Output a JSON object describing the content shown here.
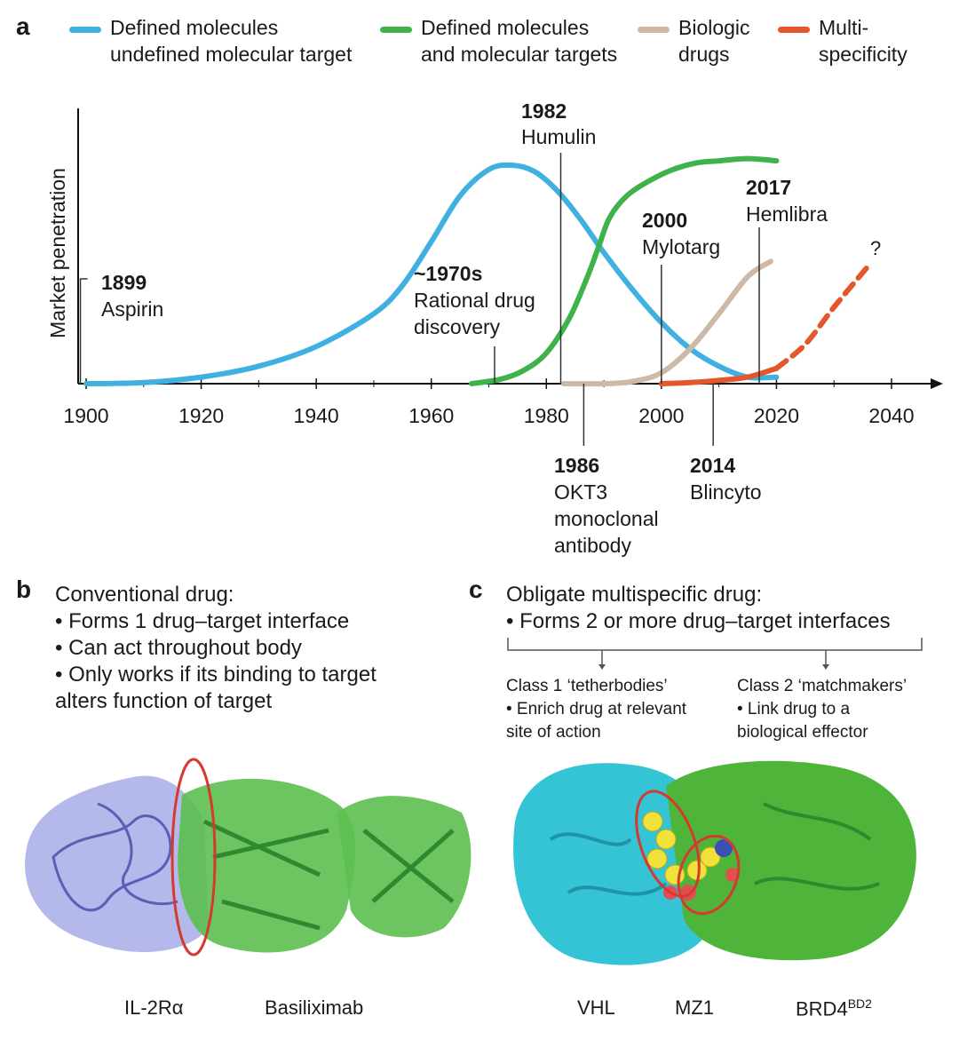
{
  "panels": {
    "a": "a",
    "b": "b",
    "c": "c"
  },
  "legend": [
    {
      "label": "Defined molecules\nundefined molecular target",
      "color": "#3fb0e0"
    },
    {
      "label": "Defined molecules\nand molecular targets",
      "color": "#3fb24a"
    },
    {
      "label": "Biologic\ndrugs",
      "color": "#cdb9a6"
    },
    {
      "label": "Multi-\nspecificity",
      "color": "#e4562b"
    }
  ],
  "chart_data": {
    "type": "line",
    "ylabel": "Market penetration",
    "xlim": [
      1898,
      2048
    ],
    "ylim": [
      0,
      1.06
    ],
    "x_ticks": [
      1900,
      1920,
      1940,
      1960,
      1980,
      2000,
      2020,
      2040
    ],
    "series": [
      {
        "name": "Defined molecules undefined molecular target",
        "color": "#3fb0e0",
        "x": [
          1900,
          1910,
          1920,
          1930,
          1940,
          1950,
          1955,
          1960,
          1965,
          1970,
          1974,
          1978,
          1982,
          1986,
          1990,
          1995,
          2000,
          2005,
          2010,
          2015,
          2020
        ],
        "y": [
          0.0,
          0.005,
          0.03,
          0.08,
          0.17,
          0.32,
          0.45,
          0.65,
          0.86,
          0.98,
          1.0,
          0.97,
          0.88,
          0.75,
          0.6,
          0.43,
          0.28,
          0.16,
          0.08,
          0.03,
          0.03
        ]
      },
      {
        "name": "Defined molecules and molecular targets",
        "color": "#3fb24a",
        "x": [
          1967,
          1972,
          1976,
          1980,
          1984,
          1987,
          1989,
          1991,
          1994,
          1998,
          2002,
          2006,
          2010,
          2015,
          2020
        ],
        "y": [
          0.0,
          0.02,
          0.06,
          0.14,
          0.3,
          0.48,
          0.62,
          0.76,
          0.86,
          0.93,
          0.98,
          1.01,
          1.02,
          1.03,
          1.02
        ]
      },
      {
        "name": "Biologic drugs",
        "color": "#cdb9a6",
        "x": [
          1983,
          1990,
          1995,
          2000,
          2005,
          2010,
          2015,
          2019
        ],
        "y": [
          0.0,
          0.0,
          0.01,
          0.05,
          0.16,
          0.32,
          0.49,
          0.56
        ]
      },
      {
        "name": "Multi-specificity",
        "color": "#e4562b",
        "x": [
          2000,
          2005,
          2010,
          2015,
          2020
        ],
        "y": [
          0.0,
          0.005,
          0.015,
          0.03,
          0.07
        ]
      },
      {
        "name": "Multi-specificity (projected)",
        "color": "#e4562b",
        "dashed": true,
        "x": [
          2020,
          2025,
          2030,
          2036
        ],
        "y": [
          0.07,
          0.18,
          0.35,
          0.54
        ]
      }
    ],
    "annotations": [
      {
        "year": "1899",
        "label": "Aspirin"
      },
      {
        "year": "~1970s",
        "label": "Rational drug\ndiscovery"
      },
      {
        "year": "1982",
        "label": "Humulin"
      },
      {
        "year": "2000",
        "label": "Mylotarg"
      },
      {
        "year": "2017",
        "label": "Hemlibra"
      },
      {
        "year": "1986",
        "label": "OKT3\nmonoclonal\nantibody"
      },
      {
        "year": "2014",
        "label": "Blincyto"
      },
      {
        "year": "",
        "label": "?"
      }
    ]
  },
  "panel_b": {
    "heading": "Conventional drug:",
    "bullets": [
      "• Forms 1 drug–target interface",
      "• Can act throughout body",
      "• Only works if its binding to target\nalters function of target"
    ],
    "labels": {
      "target": "IL-2Rα",
      "drug": "Basiliximab"
    },
    "colors": {
      "target": "#9a9ee0",
      "drug": "#44aa44",
      "interface": "#d6392e"
    }
  },
  "panel_c": {
    "heading": "Obligate multispecific drug:",
    "bullet": "• Forms 2 or more drug–target interfaces",
    "class1": "Class 1 ‘tetherbodies’\n• Enrich drug at relevant\nsite of action",
    "class2": "Class 2 ‘matchmakers’\n• Link drug to a\nbiological effector",
    "labels": {
      "left": "VHL",
      "middle": "MZ1",
      "right_main": "BRD4",
      "right_sup": "BD2"
    },
    "colors": {
      "left": "#35c3d6",
      "right": "#4fb53a",
      "ligand": "#f0e23a"
    }
  }
}
